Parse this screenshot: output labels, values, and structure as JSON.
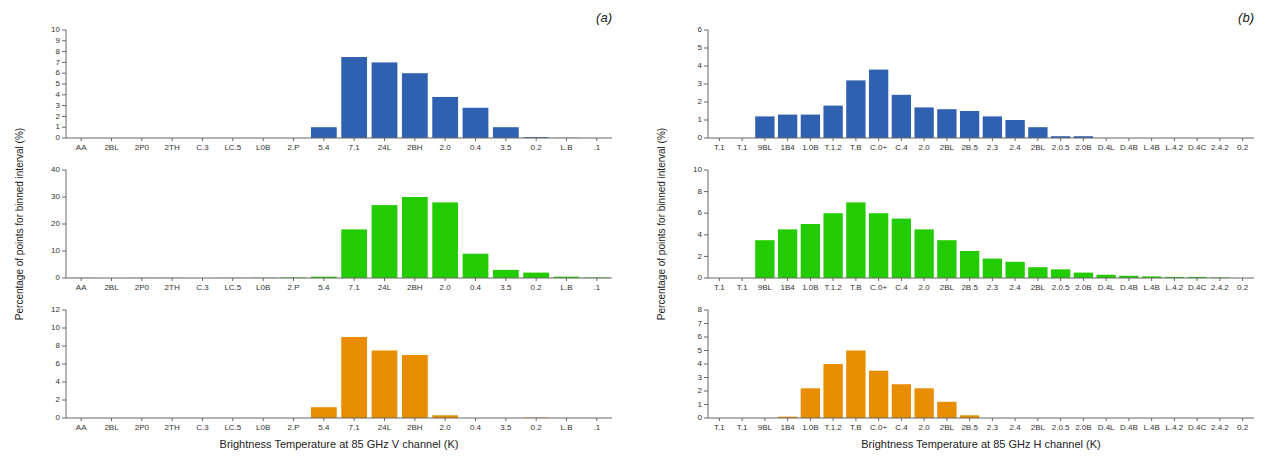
{
  "chart_data": [
    {
      "type": "bar",
      "title": "(a)",
      "categories": [
        "AA",
        "2BL",
        "2P0",
        "2TH",
        "C.3",
        "LC.5",
        "L0B",
        "2.P",
        "5.4",
        "7.1",
        "24L",
        "2BH",
        "2.0",
        "0.4",
        "3.5",
        "0.2",
        "L.B",
        ".1"
      ],
      "values": [
        0,
        0,
        0,
        0,
        0,
        0,
        0,
        0,
        1.0,
        7.5,
        7.0,
        6.0,
        3.8,
        2.8,
        1.0,
        0.08,
        0.02,
        0
      ],
      "color": "#3060B0",
      "ylim": [
        0,
        10
      ],
      "yticks": [
        0,
        1,
        2,
        3,
        4,
        5,
        6,
        7,
        8,
        9,
        10
      ]
    },
    {
      "type": "bar",
      "ylabel": "Percentage of points for binned interval (%)",
      "categories": [
        "AA",
        "2BL",
        "2P0",
        "2TH",
        "C.3",
        "LC.5",
        "L0B",
        "2.P",
        "5.4",
        "7.1",
        "24L",
        "2BH",
        "2.0",
        "0.4",
        "3.5",
        "0.2",
        "L.B",
        ".1"
      ],
      "values": [
        0.05,
        0,
        0.05,
        0.05,
        0,
        0.05,
        0.1,
        0.2,
        0.5,
        18,
        27,
        30,
        28,
        9,
        3,
        2,
        0.5,
        0.2
      ],
      "color": "#22CC00",
      "ylim": [
        0,
        40
      ],
      "yticks": [
        0,
        10,
        20,
        30,
        40
      ]
    },
    {
      "type": "bar",
      "xlabel": "Brightness Temperature at 85 GHz V channel (K)",
      "categories": [
        "AA",
        "2BL",
        "2P0",
        "2TH",
        "C.3",
        "LC.5",
        "L0B",
        "2.P",
        "5.4",
        "7.1",
        "24L",
        "2BH",
        "2.0",
        "0.4",
        "3.5",
        "0.2",
        "L.B",
        ".1"
      ],
      "values": [
        0,
        0,
        0,
        0,
        0,
        0,
        0,
        0,
        1.2,
        9.0,
        7.5,
        7.0,
        0.3,
        0,
        0,
        0.05,
        0,
        0
      ],
      "color": "#E88C00",
      "ylim": [
        0,
        12
      ],
      "yticks": [
        0,
        2,
        4,
        6,
        8,
        10,
        12
      ]
    },
    {
      "type": "bar",
      "title": "(b)",
      "categories": [
        "T.1",
        "T.1",
        "9BL",
        "1B4",
        "1.0B",
        "T.1.2",
        "T.B",
        "C.0+",
        "C.4",
        "2.0",
        "2BL",
        "2B.5",
        "2.3",
        "2.4",
        "2BL",
        "2.0.5",
        "2.0B",
        "D.4L",
        "D.4B",
        "L.4B",
        "L.4.2",
        "D.4C",
        "2.4.2",
        "0.2"
      ],
      "values": [
        0,
        0,
        1.2,
        1.3,
        1.3,
        1.8,
        3.2,
        3.8,
        2.4,
        1.7,
        1.6,
        1.5,
        1.2,
        1.0,
        0.6,
        0.1,
        0.1,
        0,
        0,
        0,
        0,
        0,
        0,
        0
      ],
      "color": "#3060B0",
      "ylim": [
        0,
        6
      ],
      "yticks": [
        0,
        1,
        2,
        3,
        4,
        5,
        6
      ]
    },
    {
      "type": "bar",
      "ylabel": "Percentage of points for binned interval (%)",
      "categories": [
        "T.1",
        "T.1",
        "9BL",
        "1B4",
        "1.0B",
        "T.1.2",
        "T.B",
        "C.0+",
        "C.4",
        "2.0",
        "2BL",
        "2B.5",
        "2.3",
        "2.4",
        "2BL",
        "2.0.5",
        "2.0B",
        "D.4L",
        "D.4B",
        "L.4B",
        "L.4.2",
        "D.4C",
        "2.4.2",
        "0.2"
      ],
      "values": [
        0,
        0,
        3.5,
        4.5,
        5.0,
        6.0,
        7.0,
        6.0,
        5.5,
        4.5,
        3.5,
        2.5,
        1.8,
        1.5,
        1.0,
        0.8,
        0.5,
        0.3,
        0.2,
        0.15,
        0.1,
        0.1,
        0.05,
        0
      ],
      "color": "#22CC00",
      "ylim": [
        0,
        10
      ],
      "yticks": [
        0,
        2,
        4,
        6,
        8,
        10
      ]
    },
    {
      "type": "bar",
      "xlabel": "Brightness Temperature at 85 GHz H channel (K)",
      "categories": [
        "T.1",
        "T.1",
        "9BL",
        "1B4",
        "1.0B",
        "T.1.2",
        "T.B",
        "C.0+",
        "C.4",
        "2.0",
        "2BL",
        "2B.5",
        "2.3",
        "2.4",
        "2BL",
        "2.0.5",
        "2.0B",
        "D.4L",
        "D.4B",
        "L.4B",
        "L.4.2",
        "D.4C",
        "2.4.2",
        "0.2"
      ],
      "values": [
        0,
        0,
        0,
        0.1,
        2.2,
        4.0,
        5.0,
        3.5,
        2.5,
        2.2,
        1.2,
        0.2,
        0,
        0,
        0,
        0,
        0,
        0,
        0,
        0,
        0,
        0,
        0,
        0
      ],
      "color": "#E88C00",
      "ylim": [
        0,
        8
      ],
      "yticks": [
        0,
        1,
        2,
        3,
        4,
        5,
        6,
        7,
        8
      ]
    }
  ]
}
